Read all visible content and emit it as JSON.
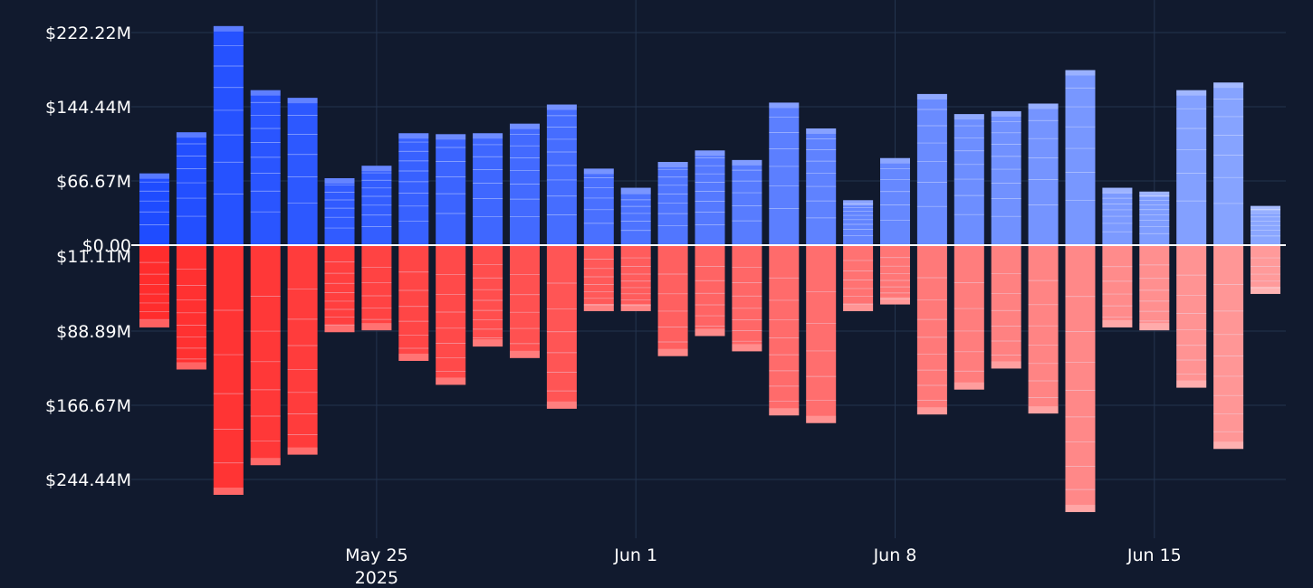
{
  "chart_data": {
    "type": "bar",
    "title": "",
    "xlabel": "",
    "ylabel": "",
    "grid": true,
    "legend": "none",
    "colors": {
      "background": "#111a2e",
      "grid": "#24344f",
      "zero_line": "#ffffff",
      "positive_dark": "#1f4cff",
      "positive_light": "#8aa6ff",
      "negative_dark": "#ff2d2d",
      "negative_light": "#ff9a9a",
      "segment_line": "#e8ecff"
    },
    "y_tick_labels_top": [
      "$222.22M",
      "$144.44M",
      "$66.67M",
      "$0.00"
    ],
    "y_tick_labels_bottom": [
      "$11.11M",
      "$88.89M",
      "$166.67M",
      "$244.44M"
    ],
    "x_tick_labels": [
      {
        "date": "2025-05-25",
        "label": "May 25",
        "sublabel": "2025"
      },
      {
        "date": "2025-06-01",
        "label": "Jun 1",
        "sublabel": ""
      },
      {
        "date": "2025-06-08",
        "label": "Jun 8",
        "sublabel": ""
      },
      {
        "date": "2025-06-15",
        "label": "Jun 15",
        "sublabel": ""
      }
    ],
    "ylim": [
      -283,
      250
    ],
    "categories": [
      "2025-05-19",
      "2025-05-20",
      "2025-05-21",
      "2025-05-22",
      "2025-05-23",
      "2025-05-24",
      "2025-05-25",
      "2025-05-26",
      "2025-05-27",
      "2025-05-28",
      "2025-05-29",
      "2025-05-30",
      "2025-05-31",
      "2025-06-01",
      "2025-06-02",
      "2025-06-03",
      "2025-06-04",
      "2025-06-05",
      "2025-06-06",
      "2025-06-07",
      "2025-06-08",
      "2025-06-09",
      "2025-06-10",
      "2025-06-11",
      "2025-06-12",
      "2025-06-13",
      "2025-06-14",
      "2025-06-15",
      "2025-06-16",
      "2025-06-17",
      "2025-06-18"
    ],
    "series": [
      {
        "values": [
          75,
          118,
          229,
          162,
          154,
          70,
          83,
          117,
          116,
          117,
          127,
          147,
          80,
          60,
          87,
          99,
          89,
          149,
          122,
          47,
          91,
          158,
          137,
          140,
          148,
          183,
          60,
          56,
          162,
          170,
          41
        ]
      },
      {
        "values": [
          -86,
          -130,
          -261,
          -230,
          -219,
          -91,
          -89,
          -121,
          -146,
          -106,
          -118,
          -171,
          -69,
          -69,
          -116,
          -95,
          -111,
          -178,
          -186,
          -69,
          -62,
          -177,
          -151,
          -129,
          -176,
          -279,
          -86,
          -89,
          -149,
          -213,
          -51
        ]
      }
    ]
  }
}
